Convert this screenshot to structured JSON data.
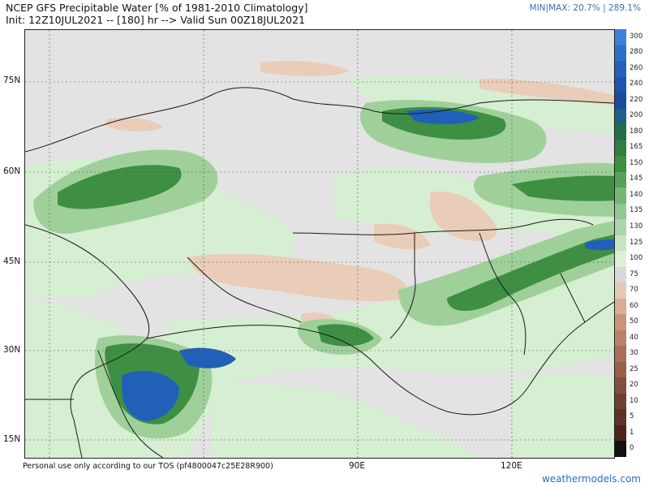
{
  "header": {
    "title": "NCEP GFS Precipitable Water [% of 1981-2010 Climatology]",
    "subtitle": "Init: 12Z10JUL2021 -- [180] hr --> Valid Sun 00Z18JUL2021",
    "minmax": "MIN|MAX: 20.7% | 289.1%"
  },
  "axes": {
    "lat_labels": [
      "75N",
      "60N",
      "45N",
      "30N",
      "15N"
    ],
    "lon_labels": [
      "90E",
      "120E"
    ]
  },
  "footer": {
    "note": "Personal use only according to our TOS (pf4800047c25E28R900)",
    "brand": "weathermodels.com"
  },
  "colorbar": {
    "labels": [
      "300",
      "280",
      "260",
      "240",
      "220",
      "200",
      "180",
      "165",
      "150",
      "145",
      "140",
      "135",
      "130",
      "125",
      "100",
      "75",
      "70",
      "60",
      "50",
      "40",
      "30",
      "25",
      "20",
      "10",
      "5",
      "1",
      "0"
    ],
    "colors": [
      "#3d7fd9",
      "#2f6fcc",
      "#245fbe",
      "#1c54ae",
      "#194b9c",
      "#1e5f8a",
      "#236f4a",
      "#2f7f3f",
      "#3f8f3f",
      "#57a257",
      "#76b776",
      "#91c891",
      "#aad6a9",
      "#c6e6c2",
      "#dcefd7",
      "#d8d8d8",
      "#e6c9b5",
      "#d9ae94",
      "#c9957a",
      "#b98266",
      "#a87058",
      "#966049",
      "#82503c",
      "#6e4030",
      "#5c3326",
      "#4a261c",
      "#111111"
    ]
  }
}
